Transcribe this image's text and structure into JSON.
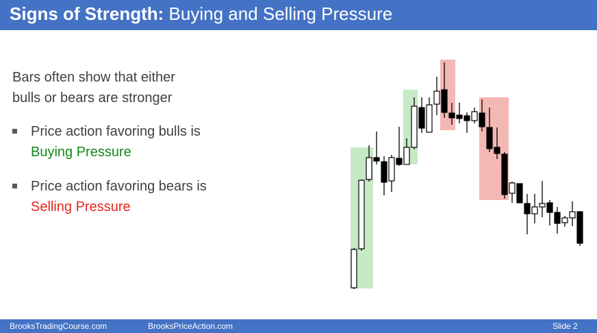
{
  "title": {
    "bold": "Signs of Strength:",
    "rest": " Buying and Selling Pressure"
  },
  "intro": {
    "line1": "Bars often show that either",
    "line2": "bulls or bears are stronger"
  },
  "bullets": [
    {
      "line1": "Price action favoring bulls is",
      "line2": "Buying Pressure",
      "accent": "#0e8a16"
    },
    {
      "line1": "Price action favoring bears is",
      "line2": "Selling Pressure",
      "accent": "#e3261c"
    }
  ],
  "footer": {
    "left": "BrooksTradingCourse.com",
    "center": "BrooksPriceAction.com",
    "slide": "Slide  2"
  },
  "colors": {
    "header": "#4472c4",
    "buy_zone": "#c6e9c6",
    "sell_zone": "#f4b8b4"
  }
}
